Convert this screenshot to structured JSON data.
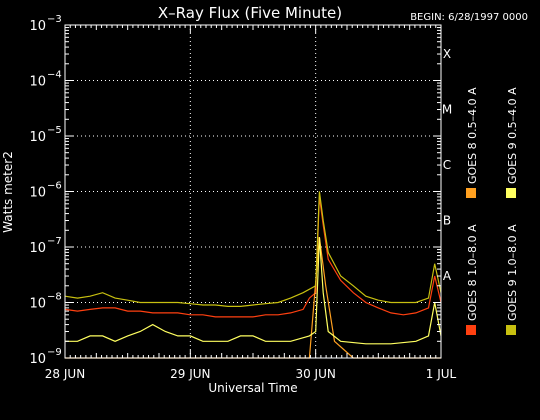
{
  "chart_data": {
    "type": "line",
    "title": "X–Ray Flux (Five Minute)",
    "begin_label": "BEGIN: 6/28/1997 0000",
    "xlabel": "Universal Time",
    "ylabel": "Watts meter2",
    "x_ticks": [
      "28 JUN",
      "29 JUN",
      "30 JUN",
      "1 JUL"
    ],
    "x_range_days": [
      0,
      3
    ],
    "y_scale": "log",
    "ylim": [
      1e-09,
      0.001
    ],
    "y_ticks": [
      {
        "base": "10",
        "exp": "−9"
      },
      {
        "base": "10",
        "exp": "−8"
      },
      {
        "base": "10",
        "exp": "−7"
      },
      {
        "base": "10",
        "exp": "−6"
      },
      {
        "base": "10",
        "exp": "−5"
      },
      {
        "base": "10",
        "exp": "−4"
      },
      {
        "base": "10",
        "exp": "−3"
      }
    ],
    "flare_classes": [
      {
        "label": "A",
        "value": 1e-08
      },
      {
        "label": "B",
        "value": 1e-07
      },
      {
        "label": "C",
        "value": 1e-06
      },
      {
        "label": "M",
        "value": 1e-05
      },
      {
        "label": "X",
        "value": 0.0001
      }
    ],
    "grid": true,
    "legend_position": "right, vertical",
    "series": [
      {
        "name": "GOES 8  1.0–8.0 A",
        "color": "#ff4010",
        "points": [
          [
            0.0,
            7.5e-09
          ],
          [
            0.1,
            7e-09
          ],
          [
            0.2,
            7.5e-09
          ],
          [
            0.3,
            8e-09
          ],
          [
            0.4,
            8e-09
          ],
          [
            0.5,
            7e-09
          ],
          [
            0.6,
            7e-09
          ],
          [
            0.7,
            6.5e-09
          ],
          [
            0.8,
            6.5e-09
          ],
          [
            0.9,
            6.5e-09
          ],
          [
            1.0,
            6e-09
          ],
          [
            1.1,
            6e-09
          ],
          [
            1.2,
            5.5e-09
          ],
          [
            1.3,
            5.5e-09
          ],
          [
            1.4,
            5.5e-09
          ],
          [
            1.5,
            5.5e-09
          ],
          [
            1.6,
            6e-09
          ],
          [
            1.7,
            6e-09
          ],
          [
            1.8,
            6.5e-09
          ],
          [
            1.9,
            7.5e-09
          ],
          [
            1.95,
            1.2e-08
          ],
          [
            2.0,
            1.5e-08
          ],
          [
            2.03,
            8e-07
          ],
          [
            2.06,
            2.5e-07
          ],
          [
            2.1,
            6e-08
          ],
          [
            2.2,
            2.5e-08
          ],
          [
            2.3,
            1.5e-08
          ],
          [
            2.4,
            1e-08
          ],
          [
            2.5,
            8e-09
          ],
          [
            2.6,
            6.5e-09
          ],
          [
            2.7,
            6e-09
          ],
          [
            2.8,
            6.5e-09
          ],
          [
            2.9,
            8e-09
          ],
          [
            2.95,
            3e-08
          ],
          [
            3.0,
            1e-08
          ]
        ]
      },
      {
        "name": "GOES 8  0.5–4.0 A",
        "color": "#ffa020",
        "points": [
          [
            0.0,
            1e-09
          ],
          [
            0.2,
            1e-09
          ],
          [
            0.4,
            1e-09
          ],
          [
            0.6,
            1e-09
          ],
          [
            0.8,
            1e-09
          ],
          [
            1.0,
            1e-09
          ],
          [
            1.2,
            1e-09
          ],
          [
            1.4,
            1e-09
          ],
          [
            1.6,
            1e-09
          ],
          [
            1.8,
            1e-09
          ],
          [
            1.95,
            1e-09
          ],
          [
            2.03,
            1.5e-07
          ],
          [
            2.08,
            2e-08
          ],
          [
            2.15,
            2e-09
          ],
          [
            2.3,
            1e-09
          ],
          [
            2.5,
            1e-09
          ],
          [
            2.7,
            1e-09
          ],
          [
            2.9,
            1e-09
          ],
          [
            3.0,
            1e-09
          ]
        ]
      },
      {
        "name": "GOES 9  1.0–8.0 A",
        "color": "#c8c010",
        "points": [
          [
            0.0,
            1.3e-08
          ],
          [
            0.1,
            1.2e-08
          ],
          [
            0.2,
            1.3e-08
          ],
          [
            0.3,
            1.5e-08
          ],
          [
            0.4,
            1.2e-08
          ],
          [
            0.5,
            1.1e-08
          ],
          [
            0.6,
            1e-08
          ],
          [
            0.7,
            1e-08
          ],
          [
            0.8,
            1e-08
          ],
          [
            0.9,
            1e-08
          ],
          [
            1.0,
            9.5e-09
          ],
          [
            1.1,
            9e-09
          ],
          [
            1.2,
            9e-09
          ],
          [
            1.3,
            8.5e-09
          ],
          [
            1.4,
            8.5e-09
          ],
          [
            1.5,
            9e-09
          ],
          [
            1.6,
            9.5e-09
          ],
          [
            1.7,
            1e-08
          ],
          [
            1.8,
            1.2e-08
          ],
          [
            1.9,
            1.5e-08
          ],
          [
            2.0,
            2e-08
          ],
          [
            2.03,
            1e-06
          ],
          [
            2.06,
            3e-07
          ],
          [
            2.1,
            8e-08
          ],
          [
            2.2,
            3e-08
          ],
          [
            2.3,
            2e-08
          ],
          [
            2.4,
            1.3e-08
          ],
          [
            2.5,
            1.1e-08
          ],
          [
            2.6,
            1e-08
          ],
          [
            2.7,
            1e-08
          ],
          [
            2.8,
            1e-08
          ],
          [
            2.9,
            1.2e-08
          ],
          [
            2.95,
            5e-08
          ],
          [
            3.0,
            1.5e-08
          ]
        ]
      },
      {
        "name": "GOES 9  0.5–4.0 A",
        "color": "#ffff60",
        "points": [
          [
            0.0,
            2e-09
          ],
          [
            0.1,
            2e-09
          ],
          [
            0.2,
            2.5e-09
          ],
          [
            0.3,
            2.5e-09
          ],
          [
            0.4,
            2e-09
          ],
          [
            0.5,
            2.5e-09
          ],
          [
            0.6,
            3e-09
          ],
          [
            0.7,
            4e-09
          ],
          [
            0.8,
            3e-09
          ],
          [
            0.9,
            2.5e-09
          ],
          [
            1.0,
            2.5e-09
          ],
          [
            1.1,
            2e-09
          ],
          [
            1.2,
            2e-09
          ],
          [
            1.3,
            2e-09
          ],
          [
            1.4,
            2.5e-09
          ],
          [
            1.5,
            2.5e-09
          ],
          [
            1.6,
            2e-09
          ],
          [
            1.7,
            2e-09
          ],
          [
            1.8,
            2e-09
          ],
          [
            1.95,
            2.5e-09
          ],
          [
            2.0,
            3e-09
          ],
          [
            2.03,
            1.5e-07
          ],
          [
            2.06,
            1.5e-08
          ],
          [
            2.1,
            3e-09
          ],
          [
            2.2,
            2e-09
          ],
          [
            2.4,
            1.8e-09
          ],
          [
            2.6,
            1.8e-09
          ],
          [
            2.8,
            2e-09
          ],
          [
            2.9,
            2.5e-09
          ],
          [
            2.95,
            1e-08
          ],
          [
            3.0,
            2.5e-09
          ]
        ]
      }
    ]
  }
}
